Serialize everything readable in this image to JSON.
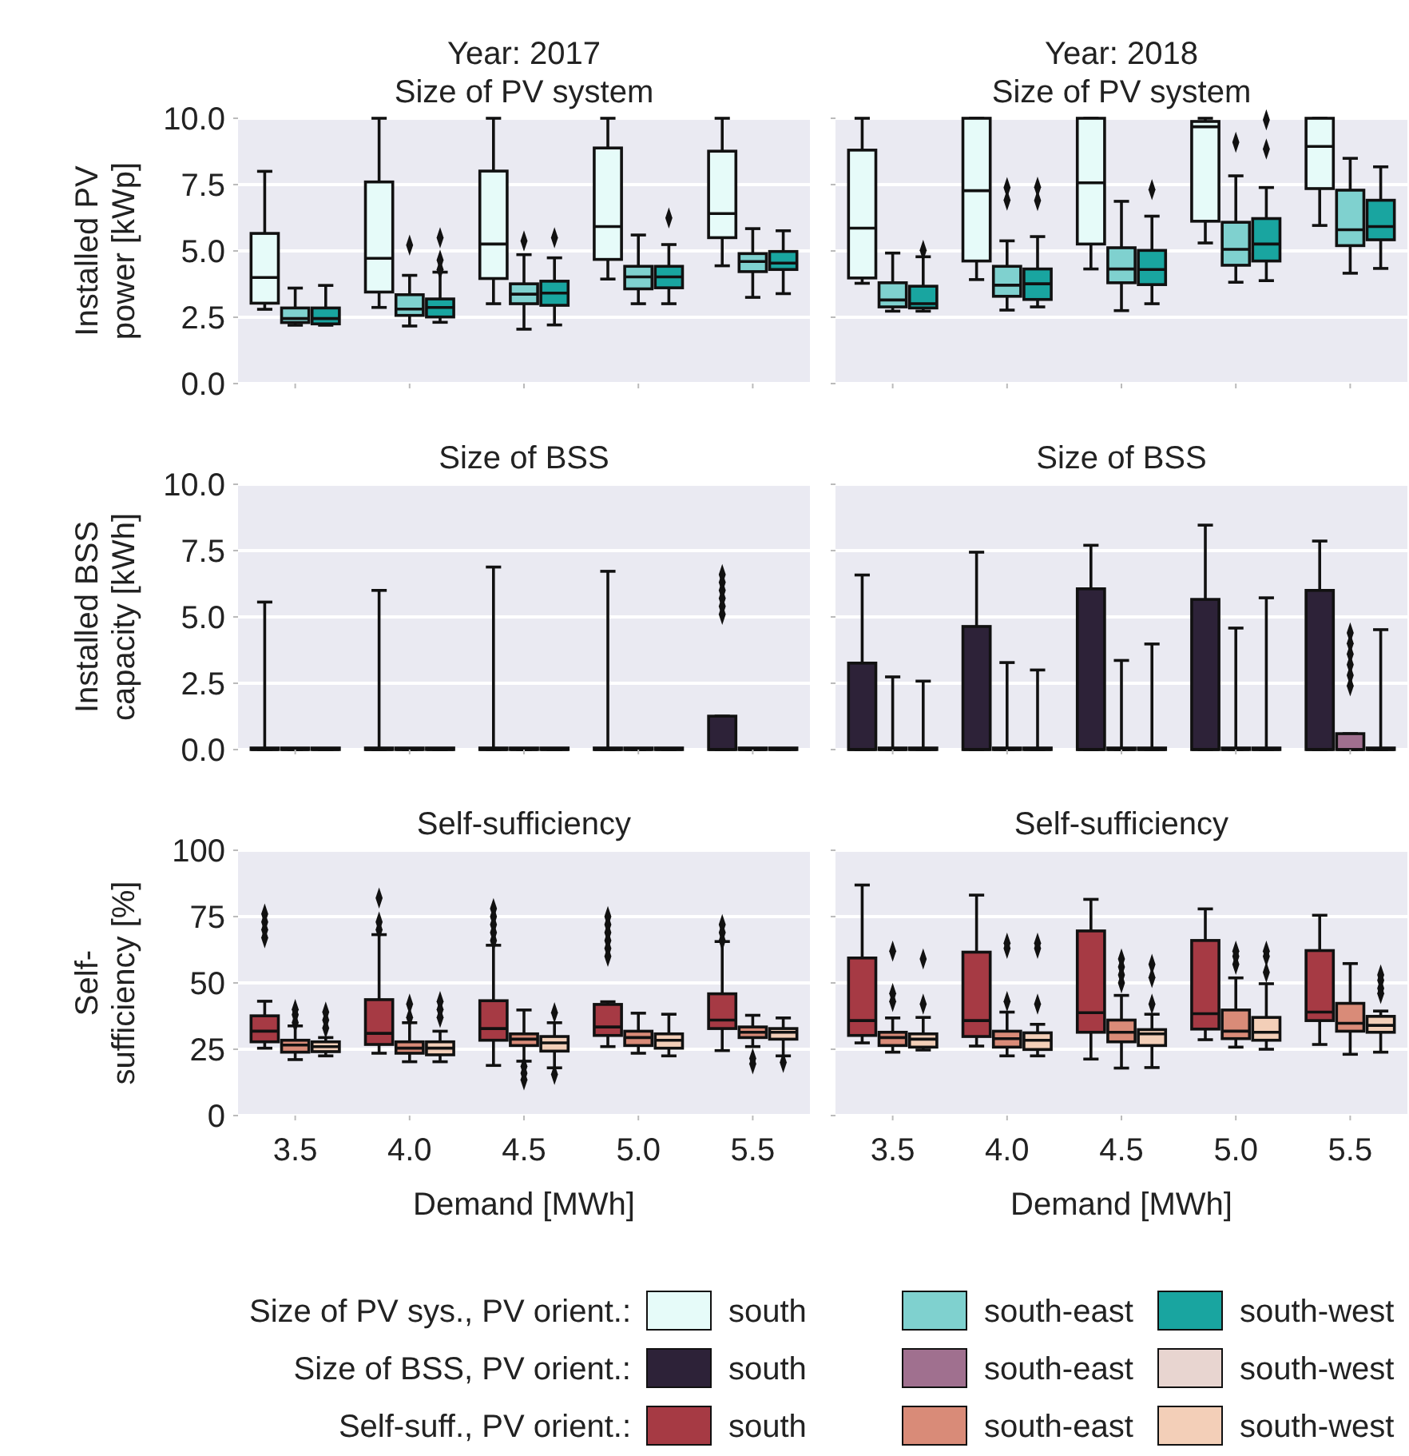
{
  "chart_data": [
    {
      "type": "box",
      "title": "Year: 2017",
      "subtitle": "Size of PV system",
      "ylabel": "Installed PV\npower [kWp]",
      "categories": [
        "3.5",
        "4.0",
        "4.5",
        "5.0",
        "5.5"
      ],
      "ylim": [
        0,
        10
      ],
      "yticks": [
        {
          "value": 0,
          "label": "0.0"
        },
        {
          "value": 2.5,
          "label": "2.5"
        },
        {
          "value": 5,
          "label": "5.0"
        },
        {
          "value": 7.5,
          "label": "7.5"
        },
        {
          "value": 10,
          "label": "10.0"
        }
      ],
      "grid": "y",
      "tick_labels": "y",
      "legend": "bottom",
      "legend_title": "Size of PV sys., PV orient.:",
      "series": [
        {
          "name": "south",
          "color": "#e6fbf9",
          "boxes": [
            {
              "low": 2.8,
              "q1": 3.03,
              "median": 4.0,
              "q3": 5.66,
              "high": 8.0
            },
            {
              "low": 2.87,
              "q1": 3.45,
              "median": 4.72,
              "q3": 7.6,
              "high": 10
            },
            {
              "low": 3.01,
              "q1": 3.96,
              "median": 5.26,
              "q3": 8.01,
              "high": 10
            },
            {
              "low": 3.94,
              "q1": 4.68,
              "median": 5.92,
              "q3": 8.88,
              "high": 10
            },
            {
              "low": 4.44,
              "q1": 5.5,
              "median": 6.41,
              "q3": 8.76,
              "high": 10
            }
          ]
        },
        {
          "name": "south-east",
          "color": "#7fd1cf",
          "boxes": [
            {
              "low": 2.2,
              "q1": 2.3,
              "median": 2.45,
              "q3": 2.85,
              "high": 3.6
            },
            {
              "low": 2.17,
              "q1": 2.57,
              "median": 2.81,
              "q3": 3.35,
              "high": 4.08,
              "outliers": [
                5.22
              ]
            },
            {
              "low": 2.05,
              "q1": 3.01,
              "median": 3.37,
              "q3": 3.76,
              "high": 4.86,
              "outliers": [
                5.38
              ]
            },
            {
              "low": 3.01,
              "q1": 3.57,
              "median": 4.02,
              "q3": 4.42,
              "high": 5.6
            },
            {
              "low": 3.25,
              "q1": 4.22,
              "median": 4.6,
              "q3": 4.9,
              "high": 5.84
            }
          ]
        },
        {
          "name": "south-west",
          "color": "#19a5a0",
          "boxes": [
            {
              "low": 2.2,
              "q1": 2.25,
              "median": 2.45,
              "q3": 2.85,
              "high": 3.7
            },
            {
              "low": 2.31,
              "q1": 2.51,
              "median": 2.87,
              "q3": 3.19,
              "high": 4.2,
              "outliers": [
                4.3,
                4.65,
                5.5
              ]
            },
            {
              "low": 2.21,
              "q1": 2.95,
              "median": 3.41,
              "q3": 3.86,
              "high": 4.74,
              "outliers": [
                5.5
              ]
            },
            {
              "low": 3.01,
              "q1": 3.61,
              "median": 4.02,
              "q3": 4.42,
              "high": 5.24,
              "outliers": [
                6.24
              ]
            },
            {
              "low": 3.39,
              "q1": 4.3,
              "median": 4.54,
              "q3": 4.98,
              "high": 5.76
            }
          ]
        }
      ]
    },
    {
      "type": "box",
      "title": "Year: 2018",
      "subtitle": "Size of PV system",
      "categories": [
        "3.5",
        "4.0",
        "4.5",
        "5.0",
        "5.5"
      ],
      "ylim": [
        0,
        10
      ],
      "yticks": [
        {
          "value": 0,
          "label": null
        },
        {
          "value": 2.5,
          "label": null
        },
        {
          "value": 5,
          "label": null
        },
        {
          "value": 7.5,
          "label": null
        },
        {
          "value": 10,
          "label": null
        }
      ],
      "grid": "y",
      "tick_labels": false,
      "series": [
        {
          "color": "#e6fbf9",
          "boxes": [
            {
              "low": 3.78,
              "q1": 3.98,
              "median": 5.86,
              "q3": 8.8,
              "high": 10
            },
            {
              "low": 3.92,
              "q1": 4.62,
              "median": 7.27,
              "q3": 10,
              "high": 10
            },
            {
              "low": 4.32,
              "q1": 5.26,
              "median": 7.57,
              "q3": 10,
              "high": 10
            },
            {
              "low": 5.3,
              "q1": 6.12,
              "median": 9.68,
              "q3": 9.88,
              "high": 10
            },
            {
              "low": 5.96,
              "q1": 7.35,
              "median": 8.94,
              "q3": 10,
              "high": 10
            }
          ]
        },
        {
          "color": "#7fd1cf",
          "boxes": [
            {
              "low": 2.73,
              "q1": 2.89,
              "median": 3.15,
              "q3": 3.8,
              "high": 4.92
            },
            {
              "low": 2.77,
              "q1": 3.29,
              "median": 3.71,
              "q3": 4.42,
              "high": 5.38,
              "outliers": [
                6.91,
                7.39
              ]
            },
            {
              "low": 2.75,
              "q1": 3.8,
              "median": 4.32,
              "q3": 5.12,
              "high": 6.87
            },
            {
              "low": 3.82,
              "q1": 4.46,
              "median": 5.06,
              "q3": 6.08,
              "high": 7.83,
              "outliers": [
                9.1
              ]
            },
            {
              "low": 4.16,
              "q1": 5.2,
              "median": 5.8,
              "q3": 7.29,
              "high": 8.49
            }
          ]
        },
        {
          "color": "#19a5a0",
          "boxes": [
            {
              "low": 2.73,
              "q1": 2.85,
              "median": 3.01,
              "q3": 3.67,
              "high": 4.78,
              "outliers": [
                5.02
              ]
            },
            {
              "low": 2.89,
              "q1": 3.17,
              "median": 3.76,
              "q3": 4.32,
              "high": 5.54,
              "outliers": [
                6.9,
                7.4
              ]
            },
            {
              "low": 3.01,
              "q1": 3.73,
              "median": 4.3,
              "q3": 5.02,
              "high": 6.31,
              "outliers": [
                7.31
              ]
            },
            {
              "low": 3.88,
              "q1": 4.62,
              "median": 5.26,
              "q3": 6.22,
              "high": 7.39,
              "outliers": [
                8.84,
                9.94
              ]
            },
            {
              "low": 4.34,
              "q1": 5.42,
              "median": 5.92,
              "q3": 6.91,
              "high": 8.17
            }
          ]
        }
      ]
    },
    {
      "type": "box",
      "title": "Size of BSS",
      "ylabel": "Installed BSS\ncapacity [kWh]",
      "categories": [
        "3.5",
        "4.0",
        "4.5",
        "5.0",
        "5.5"
      ],
      "ylim": [
        0,
        10
      ],
      "yticks": [
        {
          "value": 0,
          "label": "0.0"
        },
        {
          "value": 2.5,
          "label": "2.5"
        },
        {
          "value": 5,
          "label": "5.0"
        },
        {
          "value": 7.5,
          "label": "7.5"
        },
        {
          "value": 10,
          "label": "10.0"
        }
      ],
      "grid": "y",
      "tick_labels": "y",
      "legend": "bottom",
      "legend_title": "Size of BSS, PV orient.:",
      "series": [
        {
          "name": "south",
          "color": "#2d2238",
          "boxes": [
            {
              "low": 0,
              "q1": 0,
              "median": 0,
              "q3": 0,
              "high": 5.56
            },
            {
              "low": 0,
              "q1": 0,
              "median": 0,
              "q3": 0,
              "high": 6.0
            },
            {
              "low": 0,
              "q1": 0,
              "median": 0,
              "q3": 0,
              "high": 6.88
            },
            {
              "low": 0,
              "q1": 0,
              "median": 0,
              "q3": 0,
              "high": 6.72
            },
            {
              "low": 0,
              "q1": 0,
              "median": 0,
              "q3": 1.26,
              "high": 1.26,
              "outliers": [
                5.1,
                5.4,
                5.7,
                6.0,
                6.3,
                6.6
              ]
            }
          ]
        },
        {
          "name": "south-east",
          "color": "#a0708f",
          "boxes": [
            {
              "low": 0,
              "q1": 0,
              "median": 0,
              "q3": 0,
              "high": 0
            },
            {
              "low": 0,
              "q1": 0,
              "median": 0,
              "q3": 0,
              "high": 0
            },
            {
              "low": 0,
              "q1": 0,
              "median": 0,
              "q3": 0,
              "high": 0
            },
            {
              "low": 0,
              "q1": 0,
              "median": 0,
              "q3": 0,
              "high": 0
            },
            {
              "low": 0,
              "q1": 0,
              "median": 0,
              "q3": 0,
              "high": 0
            }
          ]
        },
        {
          "name": "south-west",
          "color": "#e8d5d0",
          "boxes": [
            {
              "low": 0,
              "q1": 0,
              "median": 0,
              "q3": 0,
              "high": 0
            },
            {
              "low": 0,
              "q1": 0,
              "median": 0,
              "q3": 0,
              "high": 0
            },
            {
              "low": 0,
              "q1": 0,
              "median": 0,
              "q3": 0,
              "high": 0
            },
            {
              "low": 0,
              "q1": 0,
              "median": 0,
              "q3": 0,
              "high": 0
            },
            {
              "low": 0,
              "q1": 0,
              "median": 0,
              "q3": 0,
              "high": 0
            }
          ]
        }
      ]
    },
    {
      "type": "box",
      "title": "Size of BSS",
      "categories": [
        "3.5",
        "4.0",
        "4.5",
        "5.0",
        "5.5"
      ],
      "ylim": [
        0,
        10
      ],
      "yticks": [
        {
          "value": 0,
          "label": null
        },
        {
          "value": 2.5,
          "label": null
        },
        {
          "value": 5,
          "label": null
        },
        {
          "value": 7.5,
          "label": null
        },
        {
          "value": 10,
          "label": null
        }
      ],
      "grid": "y",
      "tick_labels": false,
      "series": [
        {
          "color": "#2d2238",
          "boxes": [
            {
              "low": 0,
              "q1": 0,
              "median": 0,
              "q3": 3.26,
              "high": 6.58
            },
            {
              "low": 0,
              "q1": 0,
              "median": 0,
              "q3": 4.64,
              "high": 7.44
            },
            {
              "low": 0,
              "q1": 0,
              "median": 0,
              "q3": 6.06,
              "high": 7.7
            },
            {
              "low": 0,
              "q1": 0,
              "median": 0,
              "q3": 5.66,
              "high": 8.46
            },
            {
              "low": 0,
              "q1": 0,
              "median": 0,
              "q3": 6.0,
              "high": 7.86
            }
          ]
        },
        {
          "color": "#a0708f",
          "boxes": [
            {
              "low": 0,
              "q1": 0,
              "median": 0,
              "q3": 0,
              "high": 2.74
            },
            {
              "low": 0,
              "q1": 0,
              "median": 0,
              "q3": 0,
              "high": 3.28
            },
            {
              "low": 0,
              "q1": 0,
              "median": 0,
              "q3": 0,
              "high": 3.36
            },
            {
              "low": 0,
              "q1": 0,
              "median": 0,
              "q3": 0,
              "high": 4.58
            },
            {
              "low": 0,
              "q1": 0,
              "median": 0,
              "q3": 0.6,
              "high": 0.6,
              "outliers": [
                2.4,
                2.8,
                3.2,
                3.6,
                4.0,
                4.4
              ]
            }
          ]
        },
        {
          "color": "#e8d5d0",
          "boxes": [
            {
              "low": 0,
              "q1": 0,
              "median": 0,
              "q3": 0,
              "high": 2.58
            },
            {
              "low": 0,
              "q1": 0,
              "median": 0,
              "q3": 0,
              "high": 3.0
            },
            {
              "low": 0,
              "q1": 0,
              "median": 0,
              "q3": 0,
              "high": 3.98
            },
            {
              "low": 0,
              "q1": 0,
              "median": 0,
              "q3": 0,
              "high": 5.72
            },
            {
              "low": 0,
              "q1": 0,
              "median": 0,
              "q3": 0,
              "high": 4.52
            }
          ]
        }
      ]
    },
    {
      "type": "box",
      "title": "Self-sufficiency",
      "ylabel": "Self-\nsufficiency [%]",
      "xlabel": "Demand [MWh]",
      "categories": [
        "3.5",
        "4.0",
        "4.5",
        "5.0",
        "5.5"
      ],
      "ylim": [
        0,
        100
      ],
      "yticks": [
        0,
        25,
        50,
        75,
        100
      ],
      "grid": "y",
      "legend": "bottom",
      "legend_title": "Self-suff., PV orient.:",
      "series": [
        {
          "name": "south",
          "color": "#a63a44",
          "boxes": [
            {
              "low": 25.4,
              "q1": 27.8,
              "median": 31.8,
              "q3": 37.6,
              "high": 43.1,
              "outliers": [
                67,
                70,
                73,
                76
              ]
            },
            {
              "low": 23.5,
              "q1": 26.8,
              "median": 31.0,
              "q3": 43.7,
              "high": 68.2,
              "outliers": [
                70,
                73,
                82
              ]
            },
            {
              "low": 18.9,
              "q1": 28.4,
              "median": 32.8,
              "q3": 43.3,
              "high": 64.2,
              "outliers": [
                66,
                69,
                72,
                75,
                78
              ]
            },
            {
              "low": 26,
              "q1": 30.2,
              "median": 33.4,
              "q3": 41.9,
              "high": 42.9,
              "outliers": [
                60,
                63,
                66,
                69,
                72,
                75
              ]
            },
            {
              "low": 24.5,
              "q1": 32.8,
              "median": 36,
              "q3": 45.9,
              "high": 65.6,
              "outliers": [
                66,
                69,
                72
              ]
            }
          ]
        },
        {
          "name": "south-east",
          "color": "#d98b78",
          "boxes": [
            {
              "low": 21.1,
              "q1": 23.9,
              "median": 26.6,
              "q3": 28.4,
              "high": 33.8,
              "outliers": [
                35,
                38,
                40
              ]
            },
            {
              "low": 20.3,
              "q1": 23.5,
              "median": 25.4,
              "q3": 27.8,
              "high": 35,
              "outliers": [
                37,
                42
              ]
            },
            {
              "low": 20.5,
              "q1": 26.4,
              "median": 28.8,
              "q3": 30.8,
              "high": 39.8,
              "outliers": [
                13.5,
                16,
                18.5
              ]
            },
            {
              "low": 23.5,
              "q1": 26.4,
              "median": 29.4,
              "q3": 31.8,
              "high": 38.6
            },
            {
              "low": 26,
              "q1": 29.4,
              "median": 31.4,
              "q3": 33.4,
              "high": 37.8,
              "outliers": [
                19.5,
                21.5
              ]
            }
          ]
        },
        {
          "name": "south-west",
          "color": "#f3cfb8",
          "boxes": [
            {
              "low": 22.5,
              "q1": 24.1,
              "median": 26.0,
              "q3": 27.8,
              "high": 29.4,
              "outliers": [
                33,
                36,
                39
              ]
            },
            {
              "low": 20.3,
              "q1": 22.9,
              "median": 25.4,
              "q3": 27.8,
              "high": 31.8,
              "outliers": [
                37,
                40,
                43
              ]
            },
            {
              "low": 18,
              "q1": 24.3,
              "median": 27.4,
              "q3": 29.8,
              "high": 35,
              "outliers": [
                15.5,
                38.8
              ]
            },
            {
              "low": 22.5,
              "q1": 25.4,
              "median": 28.4,
              "q3": 30.8,
              "high": 38.2
            },
            {
              "low": 22.5,
              "q1": 28.8,
              "median": 31.4,
              "q3": 32.8,
              "high": 36.8,
              "outliers": [
                20
              ]
            }
          ]
        }
      ]
    },
    {
      "type": "box",
      "title": "Self-sufficiency",
      "xlabel": "Demand [MWh]",
      "categories": [
        "3.5",
        "4.0",
        "4.5",
        "5.0",
        "5.5"
      ],
      "ylim": [
        0,
        100
      ],
      "yticks": [
        {
          "value": 0,
          "label": null
        },
        {
          "value": 25,
          "label": null
        },
        {
          "value": 50,
          "label": null
        },
        {
          "value": 75,
          "label": null
        },
        {
          "value": 100,
          "label": null
        }
      ],
      "grid": "y",
      "tick_labels": "x",
      "series": [
        {
          "color": "#a63a44",
          "boxes": [
            {
              "low": 27.4,
              "q1": 30.2,
              "median": 35.8,
              "q3": 59.4,
              "high": 86.9
            },
            {
              "low": 26.2,
              "q1": 29.8,
              "median": 35.8,
              "q3": 61.6,
              "high": 83.1
            },
            {
              "low": 21.3,
              "q1": 31.4,
              "median": 38.8,
              "q3": 69.6,
              "high": 81.5
            },
            {
              "low": 28.6,
              "q1": 32.6,
              "median": 38.4,
              "q3": 66,
              "high": 77.9
            },
            {
              "low": 26.8,
              "q1": 35.8,
              "median": 39,
              "q3": 62.2,
              "high": 75.5
            }
          ]
        },
        {
          "color": "#d98b78",
          "boxes": [
            {
              "low": 23.9,
              "q1": 26.4,
              "median": 29.4,
              "q3": 31.4,
              "high": 36.8,
              "outliers": [
                43,
                46,
                62
              ]
            },
            {
              "low": 22.5,
              "q1": 25.8,
              "median": 29,
              "q3": 31.8,
              "high": 39,
              "outliers": [
                43,
                63,
                65
              ]
            },
            {
              "low": 17.9,
              "q1": 27.8,
              "median": 31.4,
              "q3": 36,
              "high": 45.3,
              "outliers": [
                50,
                53,
                56,
                59
              ]
            },
            {
              "low": 25.8,
              "q1": 29,
              "median": 31.8,
              "q3": 39.8,
              "high": 51.9,
              "outliers": [
                57,
                60,
                62
              ]
            },
            {
              "low": 23.1,
              "q1": 31.8,
              "median": 34.8,
              "q3": 42.3,
              "high": 57.3
            }
          ]
        },
        {
          "color": "#f3cfb8",
          "boxes": [
            {
              "low": 24.7,
              "q1": 25.8,
              "median": 28.8,
              "q3": 30.8,
              "high": 37,
              "outliers": [
                42,
                59
              ]
            },
            {
              "low": 22.5,
              "q1": 24.9,
              "median": 28.4,
              "q3": 31.2,
              "high": 34.4,
              "outliers": [
                42,
                63,
                65
              ]
            },
            {
              "low": 18.1,
              "q1": 26.4,
              "median": 30.8,
              "q3": 32.4,
              "high": 38.2,
              "outliers": [
                42,
                52,
                57
              ]
            },
            {
              "low": 25,
              "q1": 28.4,
              "median": 31.4,
              "q3": 37,
              "high": 49.7,
              "outliers": [
                54,
                60,
                62
              ]
            },
            {
              "low": 23.9,
              "q1": 31.4,
              "median": 34,
              "q3": 37.4,
              "high": 39.4,
              "outliers": [
                46,
                48,
                51,
                53
              ]
            }
          ]
        }
      ]
    }
  ]
}
